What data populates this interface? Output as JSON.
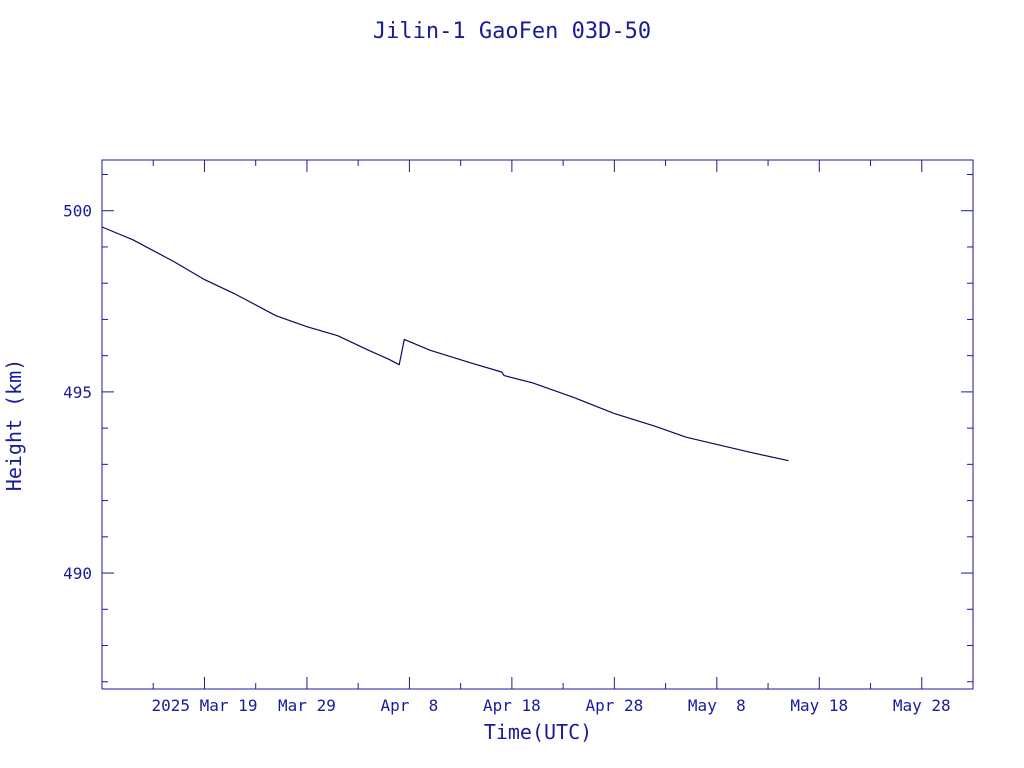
{
  "chart_data": {
    "type": "line",
    "title": "Jilin-1 GaoFen 03D-50",
    "xlabel": "Time(UTC)",
    "ylabel": "Height (km)",
    "xlim": [
      "2025-03-09",
      "2025-06-02"
    ],
    "ylim": [
      486.8,
      501.4
    ],
    "x_ticks": [
      {
        "date": "2025-03-19",
        "label": "2025 Mar 19"
      },
      {
        "date": "2025-03-29",
        "label": "Mar 29"
      },
      {
        "date": "2025-04-08",
        "label": "Apr  8"
      },
      {
        "date": "2025-04-18",
        "label": "Apr 18"
      },
      {
        "date": "2025-04-28",
        "label": "Apr 28"
      },
      {
        "date": "2025-05-08",
        "label": "May  8"
      },
      {
        "date": "2025-05-18",
        "label": "May 18"
      },
      {
        "date": "2025-05-28",
        "label": "May 28"
      }
    ],
    "y_ticks": [
      {
        "value": 490,
        "label": "490"
      },
      {
        "value": 495,
        "label": "495"
      },
      {
        "value": 500,
        "label": "500"
      }
    ],
    "y_minor_step": 1,
    "x_minor_step_days": 5,
    "grid": false,
    "series": [
      {
        "name": "",
        "points": [
          [
            "2025-03-09",
            499.55
          ],
          [
            "2025-03-12",
            499.2
          ],
          [
            "2025-03-16",
            498.6
          ],
          [
            "2025-03-19",
            498.1
          ],
          [
            "2025-03-22",
            497.7
          ],
          [
            "2025-03-23",
            497.55
          ],
          [
            "2025-03-26",
            497.1
          ],
          [
            "2025-03-29",
            496.8
          ],
          [
            "2025-04-01",
            496.55
          ],
          [
            "2025-04-04",
            496.15
          ],
          [
            "2025-04-06",
            495.9
          ],
          [
            "2025-04-07",
            495.75
          ],
          [
            "2025-04-07T12:00",
            496.45
          ],
          [
            "2025-04-10",
            496.15
          ],
          [
            "2025-04-14",
            495.8
          ],
          [
            "2025-04-17",
            495.55
          ],
          [
            "2025-04-17T06:00",
            495.45
          ],
          [
            "2025-04-20",
            495.25
          ],
          [
            "2025-04-24",
            494.85
          ],
          [
            "2025-04-28",
            494.4
          ],
          [
            "2025-05-02",
            494.05
          ],
          [
            "2025-05-05",
            493.75
          ],
          [
            "2025-05-08",
            493.55
          ],
          [
            "2025-05-11",
            493.35
          ],
          [
            "2025-05-15",
            493.1
          ]
        ]
      }
    ]
  }
}
